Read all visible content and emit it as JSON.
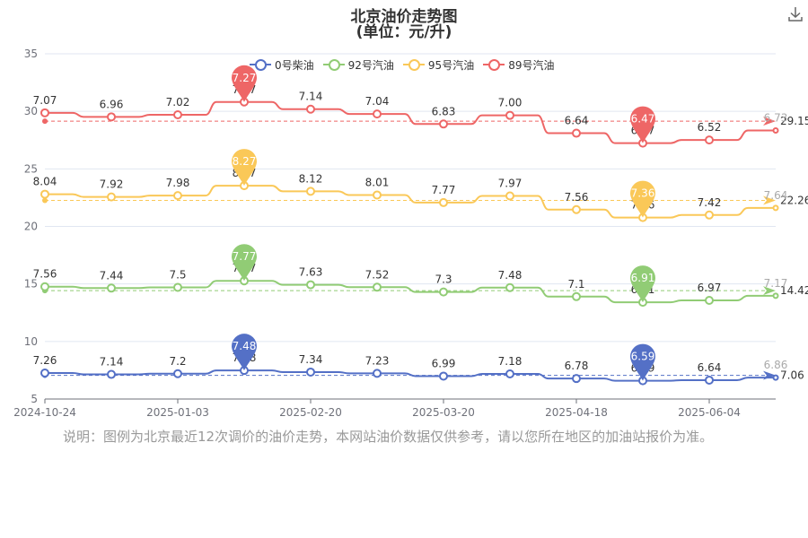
{
  "title": "北京油价走势图",
  "subtitle": "(单位：元/升)",
  "download_icon": "download-icon",
  "note": "说明：图例为北京最近12次调价的油价走势，本网站油价数据仅供参考，请以您所在地区的加油站报价为准。",
  "chart_data": {
    "type": "line",
    "ylim": [
      5,
      35
    ],
    "y_ticks": [
      "35",
      "30",
      "25",
      "20",
      "15",
      "10",
      "5"
    ],
    "x_tick_labels": [
      "2024-10-24",
      "2025-01-03",
      "2025-02-20",
      "2025-03-20",
      "2025-04-18",
      "2025-06-04"
    ],
    "grid": true,
    "legend_position": "top-center",
    "series": [
      {
        "name": "0号柴油",
        "color": "#5470c6",
        "values": [
          7.26,
          7.14,
          7.2,
          7.48,
          7.34,
          7.23,
          6.99,
          7.18,
          6.78,
          6.59,
          6.64,
          6.86
        ],
        "labels": [
          "7.26",
          "7.14",
          "7.2",
          "7.48",
          "7.34",
          "7.23",
          "6.99",
          "7.18",
          "6.78",
          "6.59",
          "6.64",
          "6.86"
        ],
        "max": {
          "value": 7.48,
          "label": "7.48",
          "index": 3
        },
        "min": {
          "value": 6.59,
          "label": "6.59",
          "index": 9
        },
        "average": 7.06,
        "average_label": "7.06"
      },
      {
        "name": "92号汽油",
        "color": "#91cc75",
        "values": [
          14.76,
          14.64,
          14.7,
          15.27,
          14.93,
          14.72,
          14.3,
          14.68,
          13.9,
          13.41,
          13.57,
          13.97
        ],
        "labels": [
          "7.56",
          "7.44",
          "7.5",
          "7.77",
          "7.63",
          "7.52",
          "7.3",
          "7.48",
          "7.1",
          "6.91",
          "6.97",
          "7.17"
        ],
        "max": {
          "value": 15.27,
          "label": "7.77",
          "index": 3
        },
        "min": {
          "value": 13.41,
          "label": "6.91",
          "index": 9
        },
        "average": 14.42,
        "average_label": "14.42"
      },
      {
        "name": "95号汽油",
        "color": "#fac858",
        "values": [
          22.8,
          22.56,
          22.68,
          23.54,
          23.05,
          22.73,
          22.07,
          22.65,
          21.46,
          20.77,
          20.99,
          21.61
        ],
        "labels": [
          "8.04",
          "7.92",
          "7.98",
          "8.27",
          "8.12",
          "8.01",
          "7.77",
          "7.97",
          "7.56",
          "7.36",
          "7.42",
          "7.64"
        ],
        "max": {
          "value": 23.54,
          "label": "8.27",
          "index": 3
        },
        "min": {
          "value": 20.77,
          "label": "7.36",
          "index": 9
        },
        "average": 22.26,
        "average_label": "22.26"
      },
      {
        "name": "89号汽油",
        "color": "#ee6666",
        "values": [
          29.87,
          29.52,
          29.7,
          30.81,
          30.19,
          29.77,
          28.9,
          29.65,
          28.1,
          27.24,
          27.51,
          28.34
        ],
        "labels": [
          "7.07",
          "6.96",
          "7.02",
          "7.27",
          "7.14",
          "7.04",
          "6.83",
          "7.00",
          "6.64",
          "6.47",
          "6.52",
          "6.73"
        ],
        "max": {
          "value": 30.81,
          "label": "7.27",
          "index": 3
        },
        "min": {
          "value": 27.24,
          "label": "6.47",
          "index": 9
        },
        "average": 29.15,
        "average_label": "29.15"
      }
    ]
  }
}
